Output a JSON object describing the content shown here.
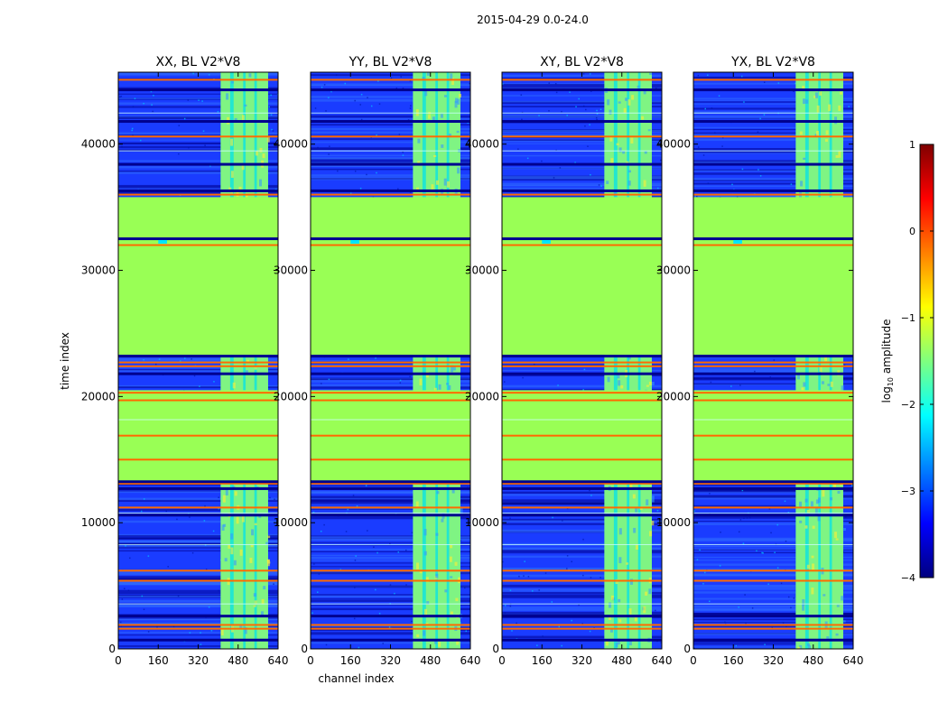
{
  "figure_title": "2015-04-29 0.0-24.0",
  "colors": {
    "background": "#ffffff",
    "noise_base": "#1a3cff",
    "flagged_fill": "#99ff55",
    "rfi_band": "#ccff44",
    "hot_line": "#ff6a00",
    "dark_line": "#00008f"
  },
  "chart_data": [
    {
      "type": "heatmap",
      "title": "XX, BL V2*V8",
      "xlabel": "",
      "ylabel": "time index",
      "xlim": [
        0,
        640
      ],
      "ylim": [
        0,
        45700
      ],
      "xticks": [
        "0",
        "160",
        "320",
        "480",
        "640"
      ],
      "yticks": [
        "0",
        "10000",
        "20000",
        "30000",
        "40000"
      ],
      "flagged_time_ranges": [
        [
          13300,
          20500
        ],
        [
          23300,
          35800
        ]
      ],
      "rfi_channel_range": [
        410,
        600
      ]
    },
    {
      "type": "heatmap",
      "title": "YY, BL V2*V8",
      "xlabel": "channel index",
      "ylabel": "",
      "xlim": [
        0,
        640
      ],
      "ylim": [
        0,
        45700
      ],
      "xticks": [
        "0",
        "160",
        "320",
        "480",
        "640"
      ],
      "yticks": [
        "0",
        "10000",
        "20000",
        "30000",
        "40000"
      ],
      "flagged_time_ranges": [
        [
          13300,
          20500
        ],
        [
          23300,
          35800
        ]
      ],
      "rfi_channel_range": [
        410,
        600
      ]
    },
    {
      "type": "heatmap",
      "title": "XY, BL V2*V8",
      "xlabel": "",
      "ylabel": "",
      "xlim": [
        0,
        640
      ],
      "ylim": [
        0,
        45700
      ],
      "xticks": [
        "0",
        "160",
        "320",
        "480",
        "640"
      ],
      "yticks": [
        "0",
        "10000",
        "20000",
        "30000",
        "40000"
      ],
      "flagged_time_ranges": [
        [
          13300,
          20500
        ],
        [
          23300,
          35800
        ]
      ],
      "rfi_channel_range": [
        410,
        600
      ]
    },
    {
      "type": "heatmap",
      "title": "YX, BL V2*V8",
      "xlabel": "",
      "ylabel": "",
      "xlim": [
        0,
        640
      ],
      "ylim": [
        0,
        45700
      ],
      "xticks": [
        "0",
        "160",
        "320",
        "480",
        "640"
      ],
      "yticks": [
        "0",
        "10000",
        "20000",
        "30000",
        "40000"
      ],
      "flagged_time_ranges": [
        [
          13300,
          20500
        ],
        [
          23300,
          35800
        ]
      ],
      "rfi_channel_range": [
        410,
        600
      ]
    }
  ],
  "colorbar": {
    "label_prefix": "log",
    "label_sub": "10",
    "label_suffix": " amplitude",
    "range": [
      -4,
      1
    ],
    "ticks": [
      "1",
      "0",
      "−1",
      "−2",
      "−3",
      "−4"
    ],
    "colormap": [
      "#00007f",
      "#0000ff",
      "#007fff",
      "#00ffff",
      "#7fff7f",
      "#ffff00",
      "#ff7f00",
      "#ff0000",
      "#7f0000"
    ]
  }
}
